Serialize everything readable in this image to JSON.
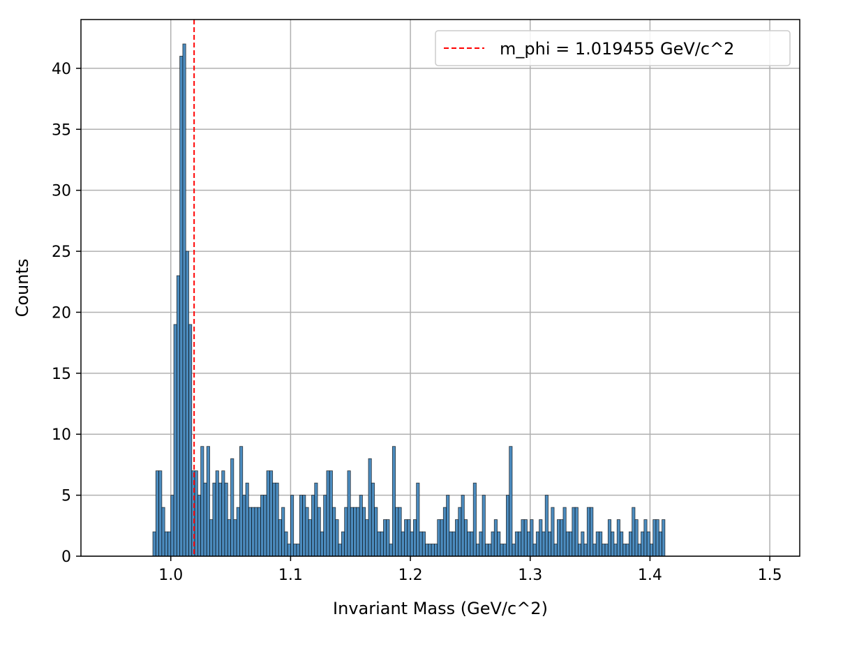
{
  "chart_data": {
    "type": "bar",
    "title": "",
    "xlabel": "Invariant Mass (GeV/c^2)",
    "ylabel": "Counts",
    "xlim": [
      0.925,
      1.525
    ],
    "ylim": [
      0,
      44
    ],
    "x_ticks": [
      {
        "value": 1.0,
        "label": "1.0"
      },
      {
        "value": 1.1,
        "label": "1.1"
      },
      {
        "value": 1.2,
        "label": "1.2"
      },
      {
        "value": 1.3,
        "label": "1.3"
      },
      {
        "value": 1.4,
        "label": "1.4"
      },
      {
        "value": 1.5,
        "label": "1.5"
      }
    ],
    "y_ticks": [
      {
        "value": 0,
        "label": "0"
      },
      {
        "value": 5,
        "label": "5"
      },
      {
        "value": 10,
        "label": "10"
      },
      {
        "value": 15,
        "label": "15"
      },
      {
        "value": 20,
        "label": "20"
      },
      {
        "value": 25,
        "label": "25"
      },
      {
        "value": 30,
        "label": "30"
      },
      {
        "value": 35,
        "label": "35"
      },
      {
        "value": 40,
        "label": "40"
      }
    ],
    "grid": true,
    "bin_start": 0.985,
    "bin_width": 0.0025,
    "counts": [
      2,
      7,
      7,
      4,
      2,
      2,
      5,
      19,
      23,
      41,
      42,
      25,
      19,
      7,
      7,
      5,
      9,
      6,
      9,
      3,
      6,
      7,
      6,
      7,
      6,
      3,
      8,
      3,
      4,
      9,
      5,
      6,
      4,
      4,
      4,
      4,
      5,
      5,
      7,
      7,
      6,
      6,
      3,
      4,
      2,
      1,
      5,
      1,
      1,
      5,
      5,
      4,
      3,
      5,
      6,
      4,
      2,
      5,
      7,
      7,
      4,
      3,
      1,
      2,
      4,
      7,
      4,
      4,
      4,
      5,
      4,
      3,
      8,
      6,
      4,
      2,
      2,
      3,
      3,
      1,
      9,
      4,
      4,
      2,
      3,
      3,
      2,
      3,
      6,
      2,
      2,
      1,
      1,
      1,
      1,
      3,
      3,
      4,
      5,
      2,
      2,
      3,
      4,
      5,
      3,
      2,
      2,
      6,
      1,
      2,
      5,
      1,
      1,
      2,
      3,
      2,
      1,
      1,
      5,
      9,
      1,
      2,
      2,
      3,
      3,
      2,
      3,
      1,
      2,
      3,
      2,
      5,
      2,
      4,
      1,
      3,
      3,
      4,
      2,
      2,
      4,
      4,
      1,
      2,
      1,
      4,
      4,
      1,
      2,
      2,
      1,
      1,
      3,
      2,
      1,
      3,
      2,
      1,
      1,
      2,
      4,
      3,
      1,
      2,
      3,
      2,
      1,
      3,
      3,
      2,
      3
    ],
    "bar_color": "#4c8cbf",
    "edge_color": "#000000",
    "reference_line": {
      "x": 1.019455,
      "label": "m_phi = 1.019455 GeV/c^2",
      "color": "#ff0000",
      "style": "dashed"
    },
    "legend_position": "upper-right"
  }
}
